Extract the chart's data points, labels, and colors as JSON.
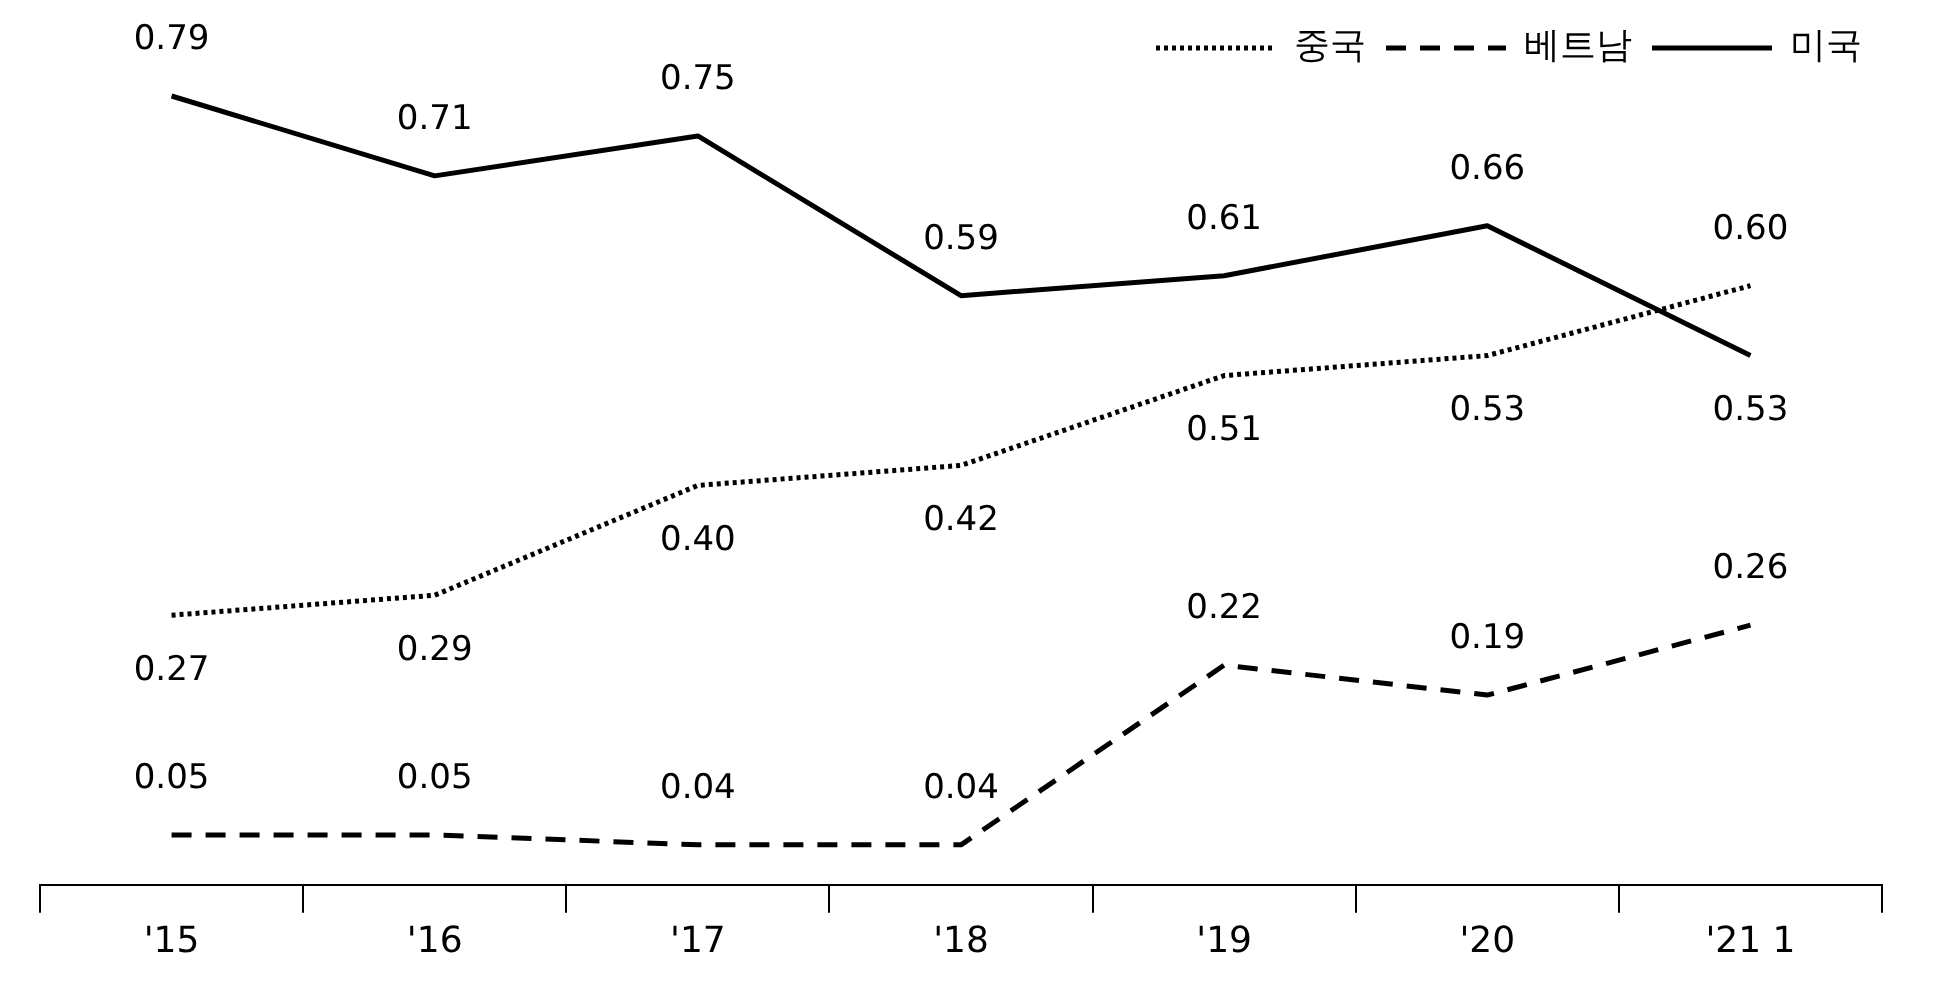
{
  "chart_data": {
    "type": "line",
    "categories": [
      "'15",
      "'16",
      "'17",
      "'18",
      "'19",
      "'20",
      "'21 1"
    ],
    "series": [
      {
        "name": "중국",
        "color": "#000000",
        "line_style": "dotted",
        "values": [
          0.27,
          0.29,
          0.4,
          0.42,
          0.51,
          0.53,
          0.6
        ],
        "value_labels": [
          "0.27",
          "0.29",
          "0.40",
          "0.42",
          "0.51",
          "0.53",
          "0.60"
        ]
      },
      {
        "name": "베트남",
        "color": "#000000",
        "line_style": "dashed",
        "values": [
          0.05,
          0.05,
          0.04,
          0.04,
          0.22,
          0.19,
          0.26
        ],
        "value_labels": [
          "0.05",
          "0.05",
          "0.04",
          "0.04",
          "0.22",
          "0.19",
          "0.26"
        ]
      },
      {
        "name": "미국",
        "color": "#000000",
        "line_style": "solid",
        "values": [
          0.79,
          0.71,
          0.75,
          0.59,
          0.61,
          0.66,
          0.53
        ],
        "value_labels": [
          "0.79",
          "0.71",
          "0.75",
          "0.59",
          "0.61",
          "0.66",
          "0.53"
        ]
      }
    ],
    "legend": "top right",
    "grid": false,
    "marker": "none",
    "tick_labels": "x"
  }
}
